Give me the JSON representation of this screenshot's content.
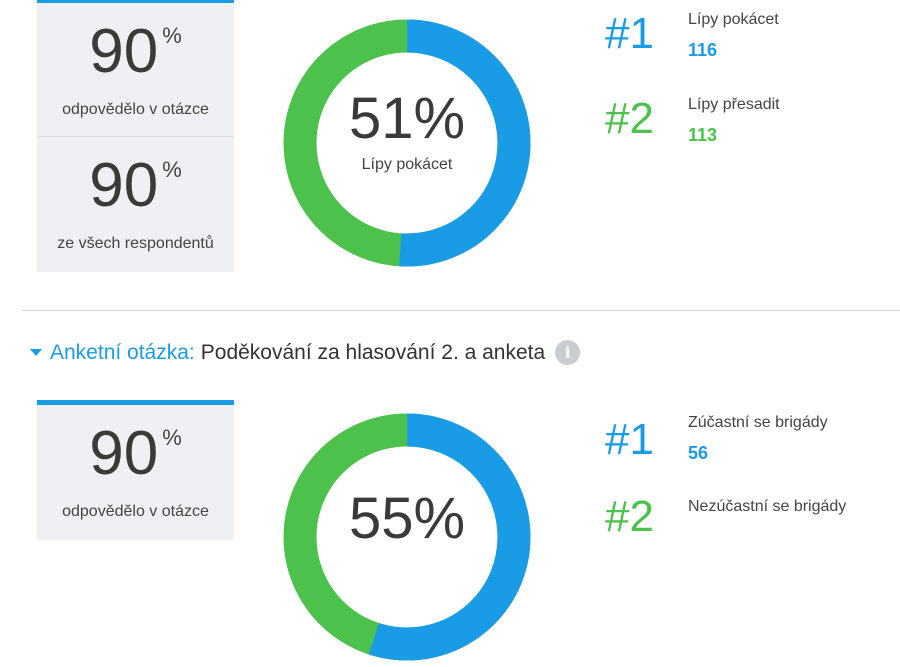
{
  "poll1": {
    "stats": [
      {
        "value": "90",
        "unit": "%",
        "caption": "odpovědělo v otázce"
      },
      {
        "value": "90",
        "unit": "%",
        "caption": "ze všech respondentů"
      }
    ],
    "donut": {
      "center_value": "51%",
      "center_label": "Lípy pokácet",
      "share_blue": 0.51
    },
    "results": [
      {
        "rank": "#1",
        "label": "Lípy pokácet",
        "count": "116"
      },
      {
        "rank": "#2",
        "label": "Lípy přesadit",
        "count": "113"
      }
    ]
  },
  "poll2": {
    "header": {
      "prefix": "Anketní otázka:",
      "title": "Poděkování za hlasování 2. a anketa",
      "info_icon": "info-icon"
    },
    "stats": [
      {
        "value": "90",
        "unit": "%",
        "caption": "odpovědělo v otázce"
      }
    ],
    "donut": {
      "center_value": "55%",
      "share_blue": 0.55
    },
    "results": [
      {
        "rank": "#1",
        "label": "Zúčastní se brigády",
        "count": "56"
      },
      {
        "rank": "#2",
        "label": "Nezúčastní se brigády"
      }
    ]
  },
  "colors": {
    "blue": "#1a9be6",
    "green": "#4cc24c",
    "card_bg": "#eef0f3"
  }
}
